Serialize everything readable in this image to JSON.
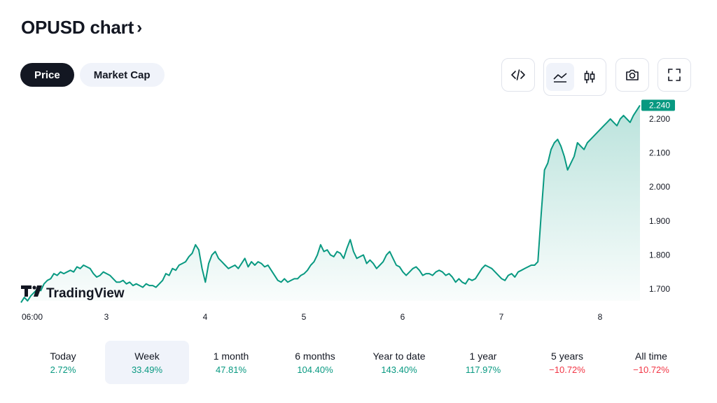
{
  "header": {
    "title": "OPUSD chart",
    "chevron": "›"
  },
  "tabs": [
    {
      "label": "Price",
      "active": true
    },
    {
      "label": "Market Cap",
      "active": false
    }
  ],
  "toolbar": {
    "icons": [
      "embed-code-icon",
      "area-chart-icon",
      "candlestick-icon",
      "camera-icon",
      "fullscreen-icon"
    ]
  },
  "watermark": "TradingView",
  "colors": {
    "line": "#089981",
    "badge_bg": "#089981",
    "positive": "#089981",
    "negative": "#f23645"
  },
  "chart_data": {
    "type": "area",
    "series": [
      {
        "values": [
          1.66,
          1.675,
          1.665,
          1.68,
          1.69,
          1.7,
          1.695,
          1.715,
          1.725,
          1.73,
          1.745,
          1.74,
          1.75,
          1.745,
          1.75,
          1.755,
          1.75,
          1.765,
          1.76,
          1.77,
          1.765,
          1.76,
          1.745,
          1.735,
          1.74,
          1.75,
          1.745,
          1.74,
          1.73,
          1.72,
          1.72,
          1.725,
          1.715,
          1.72,
          1.71,
          1.715,
          1.71,
          1.705,
          1.715,
          1.71,
          1.71,
          1.705,
          1.715,
          1.725,
          1.745,
          1.74,
          1.76,
          1.755,
          1.77,
          1.775,
          1.78,
          1.795,
          1.805,
          1.83,
          1.815,
          1.76,
          1.72,
          1.775,
          1.8,
          1.81,
          1.79,
          1.78,
          1.77,
          1.76,
          1.765,
          1.77,
          1.76,
          1.775,
          1.79,
          1.765,
          1.78,
          1.77,
          1.78,
          1.775,
          1.765,
          1.77,
          1.755,
          1.74,
          1.725,
          1.72,
          1.73,
          1.72,
          1.725,
          1.73,
          1.73,
          1.74,
          1.745,
          1.755,
          1.77,
          1.78,
          1.8,
          1.83,
          1.81,
          1.815,
          1.8,
          1.795,
          1.81,
          1.805,
          1.79,
          1.82,
          1.845,
          1.81,
          1.79,
          1.795,
          1.8,
          1.775,
          1.785,
          1.775,
          1.76,
          1.77,
          1.78,
          1.8,
          1.81,
          1.79,
          1.77,
          1.765,
          1.75,
          1.74,
          1.75,
          1.76,
          1.765,
          1.755,
          1.74,
          1.745,
          1.745,
          1.74,
          1.75,
          1.755,
          1.75,
          1.74,
          1.745,
          1.735,
          1.72,
          1.73,
          1.72,
          1.715,
          1.73,
          1.725,
          1.73,
          1.745,
          1.76,
          1.77,
          1.765,
          1.76,
          1.75,
          1.74,
          1.73,
          1.725,
          1.74,
          1.745,
          1.735,
          1.75,
          1.755,
          1.76,
          1.765,
          1.77,
          1.77,
          1.78,
          1.92,
          2.05,
          2.07,
          2.11,
          2.13,
          2.14,
          2.12,
          2.09,
          2.05,
          2.07,
          2.09,
          2.13,
          2.12,
          2.11,
          2.13,
          2.14,
          2.15,
          2.16,
          2.17,
          2.18,
          2.19,
          2.2,
          2.19,
          2.18,
          2.2,
          2.21,
          2.2,
          2.19,
          2.21,
          2.225,
          2.24
        ]
      }
    ],
    "x_tick_labels": [
      "06:00",
      "3",
      "4",
      "5",
      "6",
      "7",
      "8"
    ],
    "y_ticks": [
      "2.200",
      "2.100",
      "2.000",
      "1.900",
      "1.800",
      "1.700"
    ],
    "y_tick_values": [
      2.2,
      2.1,
      2.0,
      1.9,
      1.8,
      1.7
    ],
    "ylim": [
      1.665,
      2.26
    ],
    "last_value_label": "2.240",
    "last_value": 2.24,
    "grid": false,
    "legend": "none"
  },
  "periods": [
    {
      "label": "Today",
      "value": "2.72%",
      "sign": "pos",
      "active": false
    },
    {
      "label": "Week",
      "value": "33.49%",
      "sign": "pos",
      "active": true
    },
    {
      "label": "1 month",
      "value": "47.81%",
      "sign": "pos",
      "active": false
    },
    {
      "label": "6 months",
      "value": "104.40%",
      "sign": "pos",
      "active": false
    },
    {
      "label": "Year to date",
      "value": "143.40%",
      "sign": "pos",
      "active": false
    },
    {
      "label": "1 year",
      "value": "117.97%",
      "sign": "pos",
      "active": false
    },
    {
      "label": "5 years",
      "value": "−10.72%",
      "sign": "neg",
      "active": false
    },
    {
      "label": "All time",
      "value": "−10.72%",
      "sign": "neg",
      "active": false
    }
  ]
}
